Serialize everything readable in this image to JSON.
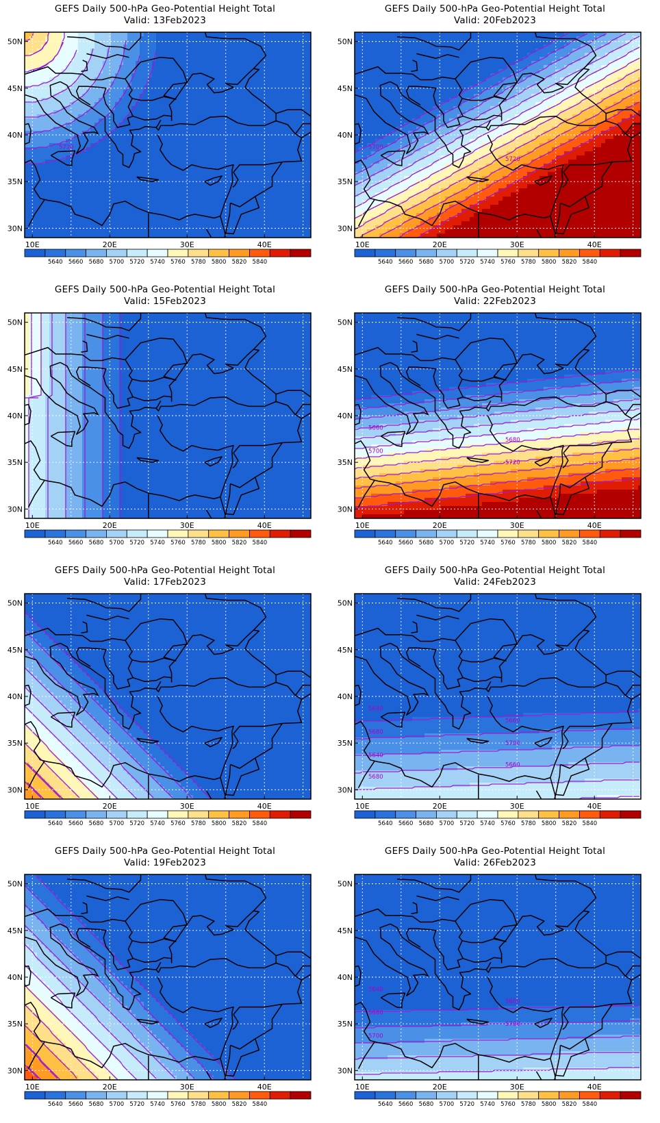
{
  "colors": {
    "levels": [
      "#1d62d4",
      "#2a73dc",
      "#4a90e6",
      "#7ab4f0",
      "#a3d2f6",
      "#c6ecfb",
      "#e6fcff",
      "#fff7b8",
      "#ffe08a",
      "#ffc044",
      "#ff9a22",
      "#ff5a0e",
      "#e01c04",
      "#b20000"
    ],
    "contour": "#9c1cd4",
    "coast": "#000000",
    "grid": "#ffffff"
  },
  "axes": {
    "x_ticks": [
      "10E",
      "20E",
      "30E",
      "40E"
    ],
    "y_ticks": [
      "50N",
      "45N",
      "40N",
      "35N",
      "30N"
    ]
  },
  "colorbar": {
    "labels": [
      "5640",
      "5660",
      "5680",
      "5700",
      "5720",
      "5740",
      "5760",
      "5780",
      "5800",
      "5820",
      "5840"
    ]
  },
  "panels": [
    {
      "title": "GEFS Daily 500-hPa Geo-Potential Height Total",
      "valid": "Valid: 13Feb2023",
      "field": {
        "x0": 10,
        "y0": 49,
        "cx": 0.03,
        "cy": -0.012,
        "amp": 3.0,
        "base": 0,
        "mode": "radial"
      },
      "contour_labels": [
        "5720"
      ]
    },
    {
      "title": "GEFS Daily 500-hPa Geo-Potential Height Total",
      "valid": "Valid: 20Feb2023",
      "field": {
        "mode": "band",
        "angle": -25,
        "base": 0
      },
      "contour_labels": [
        "5700",
        "5720"
      ]
    },
    {
      "title": "GEFS Daily 500-hPa Geo-Potential Height Total",
      "valid": "Valid: 15Feb2023",
      "field": {
        "mode": "vertical",
        "base": 0
      },
      "contour_labels": []
    },
    {
      "title": "GEFS Daily 500-hPa Geo-Potential Height Total",
      "valid": "Valid: 22Feb2023",
      "field": {
        "mode": "band",
        "angle": -5,
        "base": 0
      },
      "contour_labels": [
        "5660",
        "5680",
        "5700",
        "5720"
      ]
    },
    {
      "title": "GEFS Daily 500-hPa Geo-Potential Height Total",
      "valid": "Valid: 17Feb2023",
      "field": {
        "mode": "diag",
        "base": 0
      },
      "contour_labels": []
    },
    {
      "title": "GEFS Daily 500-hPa Geo-Potential Height Total",
      "valid": "Valid: 24Feb2023",
      "field": {
        "mode": "band2",
        "base": 0
      },
      "contour_labels": [
        "5640",
        "5660",
        "5680",
        "5700",
        "5640",
        "5660",
        "5680"
      ]
    },
    {
      "title": "GEFS Daily 500-hPa Geo-Potential Height Total",
      "valid": "Valid: 19Feb2023",
      "field": {
        "mode": "diag2",
        "base": 0
      },
      "contour_labels": []
    },
    {
      "title": "GEFS Daily 500-hPa Geo-Potential Height Total",
      "valid": "Valid: 26Feb2023",
      "field": {
        "mode": "band3",
        "base": 0
      },
      "contour_labels": [
        "5640",
        "5660",
        "5680",
        "5700",
        "5700"
      ]
    }
  ]
}
